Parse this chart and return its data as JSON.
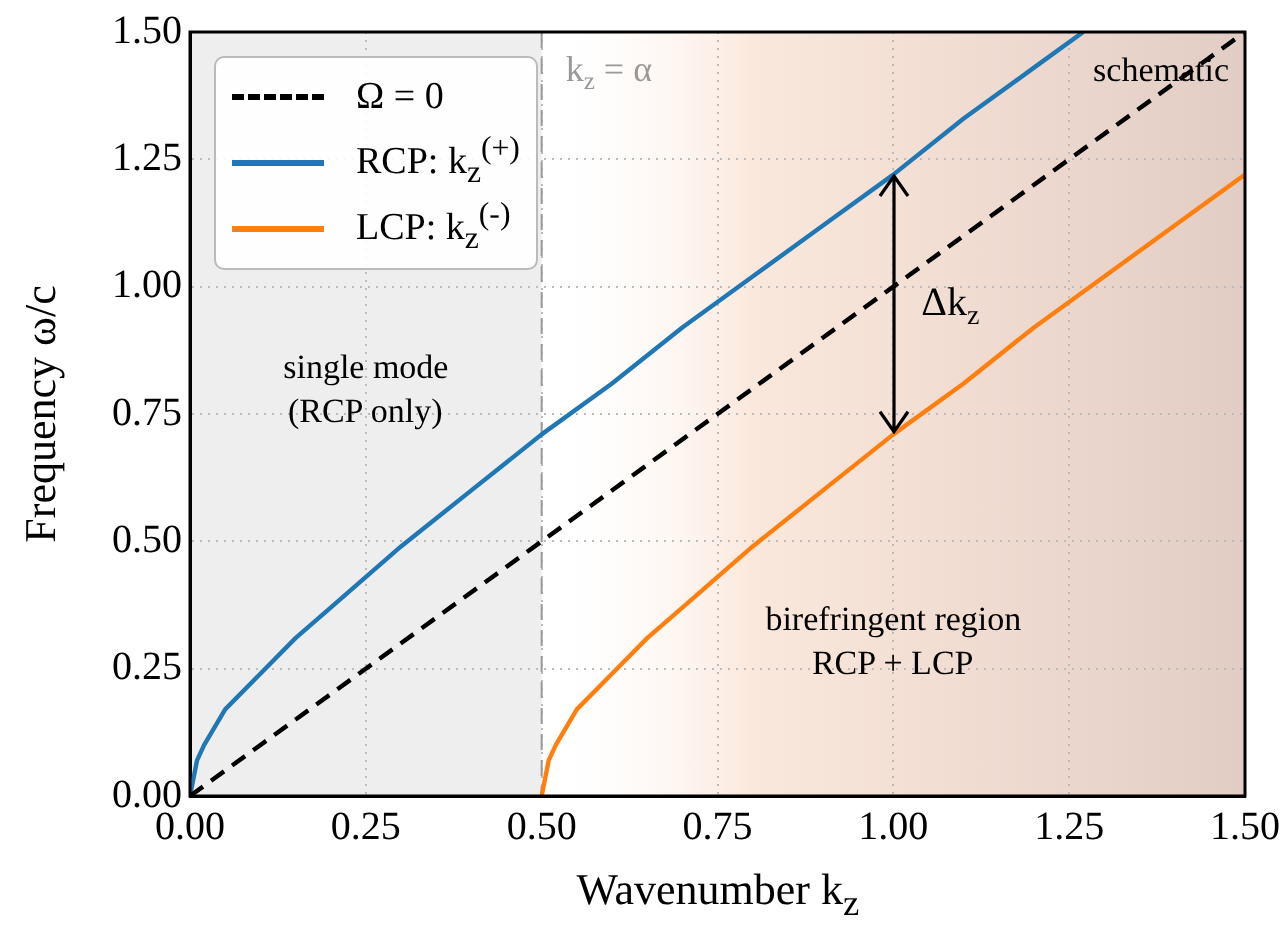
{
  "chart_data": {
    "type": "line",
    "xlabel": "Wavenumber k$_{z}$",
    "ylabel": "Frequency ω/c",
    "xlim": [
      0,
      1.5
    ],
    "ylim": [
      0,
      1.5
    ],
    "xticks": [
      {
        "value": 0,
        "label": "0.00"
      },
      {
        "value": 0.25,
        "label": "0.25"
      },
      {
        "value": 0.5,
        "label": "0.50"
      },
      {
        "value": 0.75,
        "label": "0.75"
      },
      {
        "value": 1,
        "label": "1.00"
      },
      {
        "value": 1.25,
        "label": "1.25"
      },
      {
        "value": 1.5,
        "label": "1.50"
      }
    ],
    "yticks": [
      {
        "value": 0,
        "label": "0.00"
      },
      {
        "value": 0.25,
        "label": "0.25"
      },
      {
        "value": 0.5,
        "label": "0.50"
      },
      {
        "value": 0.75,
        "label": "0.75"
      },
      {
        "value": 1,
        "label": "1.00"
      },
      {
        "value": 1.25,
        "label": "1.25"
      },
      {
        "value": 1.5,
        "label": "1.50"
      }
    ],
    "grid": true,
    "legend": "top left",
    "marker": "none",
    "series": [
      {
        "name": "Ω = 0",
        "color": "#000000",
        "line_style": "dashed",
        "x": [
          0,
          1.5
        ],
        "values": [
          0,
          1.5
        ]
      },
      {
        "name": "RCP: k$_{z}$$^{(+)}$",
        "color": "#1f77b4",
        "line_style": "solid",
        "x": [
          0,
          0.01,
          0.02,
          0.05,
          0.1,
          0.15,
          0.2,
          0.3,
          0.4,
          0.5,
          0.6,
          0.7,
          0.8,
          0.9,
          1.0,
          1.1,
          1.2,
          1.27
        ],
        "values": [
          0,
          0.07,
          0.1,
          0.17,
          0.24,
          0.31,
          0.37,
          0.49,
          0.6,
          0.71,
          0.81,
          0.92,
          1.02,
          1.12,
          1.22,
          1.33,
          1.43,
          1.5
        ]
      },
      {
        "name": "LCP: k$_{z}$$^{(-)}$",
        "color": "#ff7f0e",
        "line_style": "solid",
        "x": [
          0.5,
          0.51,
          0.52,
          0.55,
          0.6,
          0.65,
          0.7,
          0.8,
          0.9,
          1.0,
          1.1,
          1.2,
          1.3,
          1.4,
          1.5
        ],
        "values": [
          0,
          0.07,
          0.1,
          0.17,
          0.24,
          0.31,
          0.37,
          0.49,
          0.6,
          0.71,
          0.81,
          0.92,
          1.02,
          1.12,
          1.22
        ]
      }
    ],
    "ref_lines": [
      {
        "axis": "x",
        "value": 0.5,
        "label": "k$_{z}$ = α",
        "color": "#999999",
        "line_style": "dashed"
      }
    ],
    "bands": [
      {
        "axis": "x",
        "from": 0,
        "to": 0.5,
        "color": "#eeeeee"
      },
      {
        "axis": "x",
        "from": 0.5,
        "to": 1.5,
        "color": "#e2cdc4"
      }
    ],
    "annotations": [
      "single mode\n(RCP only)",
      "birefringent region\nRCP + LCP",
      {
        "text": "Δk$_{z}$",
        "x": 1,
        "y": 1.22
      },
      "schematic"
    ]
  }
}
